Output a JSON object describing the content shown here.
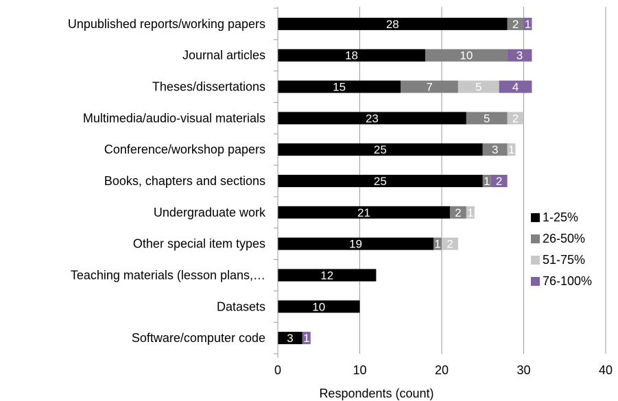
{
  "chart_data": {
    "type": "bar",
    "orientation": "horizontal",
    "stacked": true,
    "categories": [
      "Unpublished reports/working papers",
      "Journal articles",
      "Theses/dissertations",
      "Multimedia/audio-visual materials",
      "Conference/workshop papers",
      "Books, chapters and sections",
      "Undergraduate work",
      "Other special item types",
      "Teaching materials (lesson plans,…",
      "Datasets",
      "Software/computer code"
    ],
    "series": [
      {
        "name": "1-25%",
        "color": "#000000",
        "values": [
          28,
          18,
          15,
          23,
          25,
          25,
          21,
          19,
          12,
          10,
          3
        ]
      },
      {
        "name": "26-50%",
        "color": "#808080",
        "values": [
          2,
          10,
          7,
          5,
          3,
          1,
          2,
          1,
          0,
          0,
          0
        ]
      },
      {
        "name": "51-75%",
        "color": "#c8c8c8",
        "values": [
          0,
          0,
          5,
          2,
          1,
          0,
          1,
          2,
          0,
          0,
          0
        ]
      },
      {
        "name": "76-100%",
        "color": "#8064a2",
        "values": [
          1,
          3,
          4,
          0,
          0,
          2,
          0,
          0,
          0,
          0,
          1
        ]
      }
    ],
    "xlabel": "Respondents (count)",
    "xlim": [
      0,
      40
    ],
    "xticks": [
      0,
      10,
      20,
      30,
      40
    ],
    "grid": "vertical",
    "legend": "right"
  }
}
